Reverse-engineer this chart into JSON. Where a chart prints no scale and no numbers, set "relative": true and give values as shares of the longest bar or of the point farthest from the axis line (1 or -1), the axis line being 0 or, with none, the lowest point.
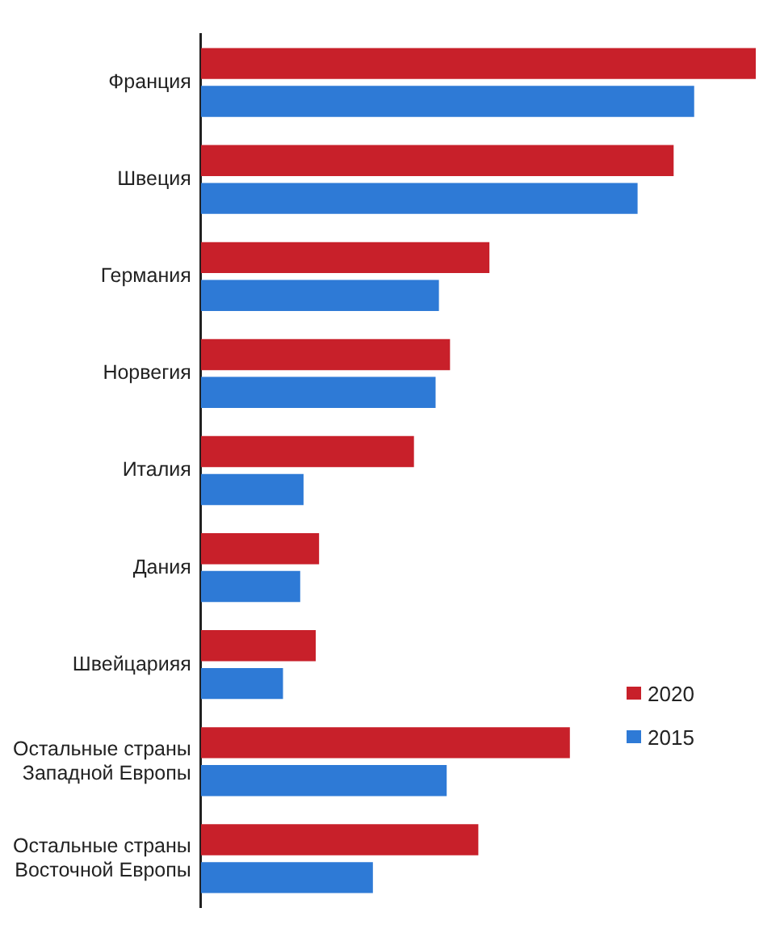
{
  "chart_data": {
    "type": "bar",
    "orientation": "horizontal",
    "relative": true,
    "legend": "bottom right",
    "categories": [
      "Франция",
      "Швеция",
      "Германия",
      "Норвегия",
      "Италия",
      "Дания",
      "Швейцарияя",
      "Остальные страны Западной Европы",
      "Остальные страны Восточной Европы"
    ],
    "series": [
      {
        "name": "2020",
        "color": "#c8202a",
        "values": [
          1,
          0.852,
          0.52,
          0.449,
          0.384,
          0.213,
          0.207,
          0.665,
          0.5
        ]
      },
      {
        "name": "2015",
        "color": "#2e7ad6",
        "values": [
          0.889,
          0.787,
          0.429,
          0.423,
          0.185,
          0.179,
          0.148,
          0.443,
          0.31
        ]
      }
    ]
  }
}
